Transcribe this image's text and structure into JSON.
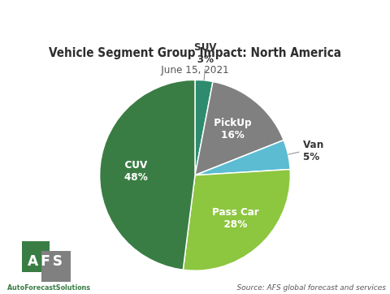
{
  "chart_data": {
    "type": "pie",
    "title": "Vehicle Segment Group Impact: North America",
    "subtitle": "June 15, 2021",
    "annotations": [
      "Source: AFS global forecast and services",
      "AFS",
      "AutoForecastSolutions"
    ],
    "categories": [
      "SUV",
      "PickUp",
      "Van",
      "Pass Car",
      "CUV"
    ],
    "values": [
      3,
      16,
      5,
      28,
      48
    ],
    "value_labels": [
      "3%",
      "16%",
      "5%",
      "28%",
      "48%"
    ],
    "colors": [
      "#2e8b6e",
      "#808080",
      "#5bbcd2",
      "#8dc63f",
      "#3a7d44"
    ],
    "data_labels": true
  }
}
